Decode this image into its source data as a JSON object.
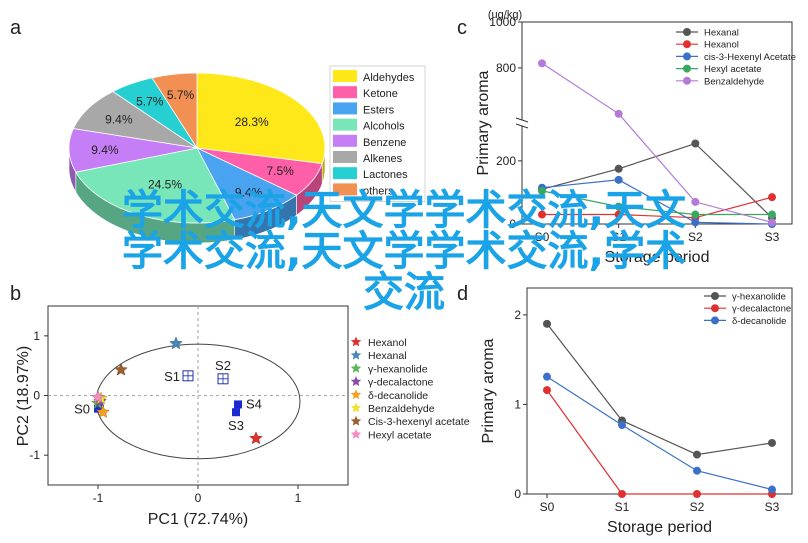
{
  "panels": {
    "a": "a",
    "b": "b",
    "c": "c",
    "d": "d"
  },
  "colors": {
    "overlay": "#1aa3e6"
  },
  "chart_data": [
    {
      "panel": "a",
      "type": "pie",
      "slices": [
        {
          "name": "Aldehydes",
          "value": 28.3,
          "label": "28.3%",
          "color": "#ffe81a"
        },
        {
          "name": "Ketone",
          "value": 7.5,
          "label": "7.5%",
          "color": "#ff5fa8"
        },
        {
          "name": "Esters",
          "value": 9.4,
          "label": "9.4%",
          "color": "#4aa3f0"
        },
        {
          "name": "Alcohols",
          "value": 24.5,
          "label": "24.5%",
          "color": "#78e6b8"
        },
        {
          "name": "Benzene",
          "value": 9.4,
          "label": "9.4%",
          "color": "#c57ef5"
        },
        {
          "name": "Alkenes",
          "value": 9.4,
          "label": "9.4%",
          "color": "#a8a8a8"
        },
        {
          "name": "Lactones",
          "value": 5.7,
          "label": "5.7%",
          "color": "#26cfd2"
        },
        {
          "name": "others",
          "value": 5.7,
          "label": "5.7%",
          "color": "#f28f52"
        }
      ],
      "legend_position": "right"
    },
    {
      "panel": "b",
      "type": "scatter",
      "xlabel": "PC1 (72.74%)",
      "ylabel": "PC2 (18.97%)",
      "xlim": [
        -1.5,
        1.5
      ],
      "ylim": [
        -1.5,
        1.5
      ],
      "xticks": [
        -1,
        0,
        1
      ],
      "yticks": [
        -1,
        0,
        1
      ],
      "sample_points": [
        {
          "label": "S0",
          "x": -1.0,
          "y": -0.22,
          "label_side": "left"
        },
        {
          "label": "S1",
          "x": -0.1,
          "y": 0.33,
          "label_side": "left"
        },
        {
          "label": "S2",
          "x": 0.25,
          "y": 0.28,
          "label_side": "above"
        },
        {
          "label": "S3",
          "x": 0.38,
          "y": -0.28,
          "label_side": "below"
        },
        {
          "label": "S4",
          "x": 0.4,
          "y": -0.15,
          "label_side": "right"
        }
      ],
      "series": [
        {
          "name": "Hexanol",
          "color": "#e03030",
          "x": 0.58,
          "y": -0.72
        },
        {
          "name": "Hexanal",
          "color": "#4a86b8",
          "x": -0.22,
          "y": 0.87
        },
        {
          "name": "γ-hexanolide",
          "color": "#5ab858",
          "x": -1.0,
          "y": -0.13
        },
        {
          "name": "γ-decalactone",
          "color": "#8a4aa8",
          "x": -0.98,
          "y": -0.1
        },
        {
          "name": "δ-decanolide",
          "color": "#f5a020",
          "x": -0.95,
          "y": -0.28
        },
        {
          "name": "Benzaldehyde",
          "color": "#f0e030",
          "x": -0.97,
          "y": -0.05
        },
        {
          "name": "Cis-3-hexenyl acetate",
          "color": "#9a6030",
          "x": -0.77,
          "y": 0.43
        },
        {
          "name": "Hexyl acetate",
          "color": "#f58cc0",
          "x": -1.0,
          "y": -0.03
        }
      ]
    },
    {
      "panel": "c",
      "type": "line",
      "unit_label": "(ug/kg)",
      "ylabel": "Primary aroma",
      "xlabel": "Storage period",
      "categories": [
        "S0",
        "S1",
        "S2",
        "S3"
      ],
      "ylim": [
        0,
        1000
      ],
      "axis_break": [
        320,
        560
      ],
      "yticks": [
        0,
        200,
        800,
        1000
      ],
      "series": [
        {
          "name": "Hexanal",
          "color": "#555555",
          "values": [
            110,
            175,
            255,
            20
          ]
        },
        {
          "name": "Hexanol",
          "color": "#e03030",
          "values": [
            30,
            30,
            20,
            85
          ]
        },
        {
          "name": "cis-3-Hexenyl Acetate",
          "color": "#3a70c8",
          "values": [
            115,
            140,
            5,
            0
          ]
        },
        {
          "name": "Hexyl acetate",
          "color": "#3aa860",
          "values": [
            105,
            55,
            30,
            30
          ]
        },
        {
          "name": "Benzaldehyde",
          "color": "#b47ad8",
          "values": [
            820,
            600,
            70,
            5
          ]
        }
      ]
    },
    {
      "panel": "d",
      "type": "line",
      "ylabel": "Primary aroma",
      "xlabel": "Storage period",
      "categories": [
        "S0",
        "S1",
        "S2",
        "S3"
      ],
      "ylim": [
        0,
        2.3
      ],
      "yticks": [
        0,
        1,
        2
      ],
      "series": [
        {
          "name": "γ-hexanolide",
          "color": "#555555",
          "values": [
            1.9,
            0.82,
            0.44,
            0.57
          ]
        },
        {
          "name": "γ-decalactone",
          "color": "#e03030",
          "values": [
            1.16,
            0.0,
            0.0,
            0.0
          ]
        },
        {
          "name": "δ-decanolide",
          "color": "#3a70c8",
          "values": [
            1.31,
            0.77,
            0.26,
            0.05
          ]
        }
      ]
    }
  ],
  "overlay_text": [
    "学术交流,天文学学术交流,天文",
    "学术交流,天文学学术交流,学术",
    "交流"
  ]
}
